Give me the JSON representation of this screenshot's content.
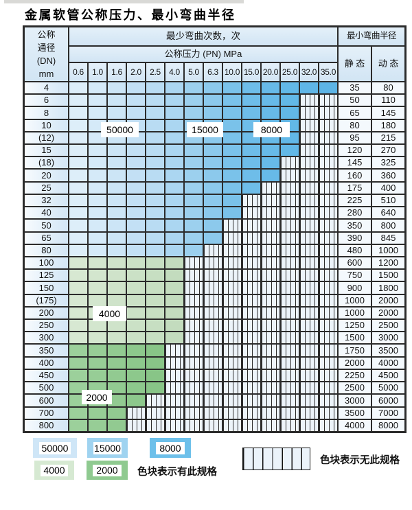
{
  "title": "金属软管公称压力、最小弯曲半径",
  "header": {
    "dn_lines": [
      "公称",
      "通径",
      "(DN)",
      "mm"
    ],
    "cycles": "最少弯曲次数，次",
    "pressure": "公称压力 (PN) MPa",
    "radius": "最小弯曲半径",
    "static": "静 态",
    "dynamic": "动 态"
  },
  "chart_data": {
    "type": "table",
    "title": "金属软管公称压力、最小弯曲半径",
    "row_axis": "公称通径 (DN) mm",
    "col_axis": "公称压力 (PN) MPa",
    "cell_meaning": "最少弯曲次数，次",
    "radius_columns": [
      "静 态",
      "动 态"
    ],
    "pressure_columns": [
      "0.6",
      "1.0",
      "1.6",
      "2.0",
      "2.5",
      "4.0",
      "5.0",
      "6.3",
      "10.0",
      "15.0",
      "20.0",
      "25.0",
      "32.0",
      "35.0"
    ],
    "band_labels": [
      "50000",
      "15000",
      "8000",
      "4000",
      "2000"
    ],
    "rows": [
      {
        "dn": "4",
        "colored_until": "35.0",
        "zone": "blue",
        "static": 35,
        "dynamic": 80
      },
      {
        "dn": "6",
        "colored_until": "25.0",
        "zone": "blue",
        "static": 50,
        "dynamic": 110
      },
      {
        "dn": "8",
        "colored_until": "25.0",
        "zone": "blue",
        "static": 65,
        "dynamic": 145
      },
      {
        "dn": "10",
        "colored_until": "25.0",
        "zone": "blue",
        "static": 80,
        "dynamic": 180
      },
      {
        "dn": "(12)",
        "colored_until": "25.0",
        "zone": "blue",
        "static": 95,
        "dynamic": 215
      },
      {
        "dn": "15",
        "colored_until": "25.0",
        "zone": "blue",
        "static": 120,
        "dynamic": 270
      },
      {
        "dn": "(18)",
        "colored_until": "20.0",
        "zone": "blue",
        "static": 145,
        "dynamic": 325
      },
      {
        "dn": "20",
        "colored_until": "20.0",
        "zone": "blue",
        "static": 160,
        "dynamic": 360
      },
      {
        "dn": "25",
        "colored_until": "15.0",
        "zone": "blue",
        "static": 175,
        "dynamic": 400
      },
      {
        "dn": "32",
        "colored_until": "10.0",
        "zone": "blue",
        "static": 225,
        "dynamic": 510
      },
      {
        "dn": "40",
        "colored_until": "10.0",
        "zone": "blue",
        "static": 280,
        "dynamic": 640
      },
      {
        "dn": "50",
        "colored_until": "6.3",
        "zone": "blue",
        "static": 350,
        "dynamic": 800
      },
      {
        "dn": "65",
        "colored_until": "6.3",
        "zone": "blue",
        "static": 390,
        "dynamic": 845
      },
      {
        "dn": "80",
        "colored_until": "5.0",
        "zone": "blue",
        "static": 480,
        "dynamic": 1000
      },
      {
        "dn": "100",
        "colored_until": "4.0",
        "zone": "green_light",
        "static": 600,
        "dynamic": 1200
      },
      {
        "dn": "125",
        "colored_until": "4.0",
        "zone": "green_light",
        "static": 750,
        "dynamic": 1500
      },
      {
        "dn": "150",
        "colored_until": "4.0",
        "zone": "green_light",
        "static": 900,
        "dynamic": 1800
      },
      {
        "dn": "(175)",
        "colored_until": "4.0",
        "zone": "green_light",
        "static": 1000,
        "dynamic": 2000
      },
      {
        "dn": "200",
        "colored_until": "4.0",
        "zone": "green_light",
        "static": 1000,
        "dynamic": 2000
      },
      {
        "dn": "250",
        "colored_until": "4.0",
        "zone": "green_light",
        "static": 1250,
        "dynamic": 2500
      },
      {
        "dn": "300",
        "colored_until": "4.0",
        "zone": "green_light",
        "static": 1500,
        "dynamic": 3000
      },
      {
        "dn": "350",
        "colored_until": "2.5",
        "zone": "green_dark",
        "static": 1750,
        "dynamic": 3500
      },
      {
        "dn": "400",
        "colored_until": "2.5",
        "zone": "green_dark",
        "static": 2000,
        "dynamic": 4000
      },
      {
        "dn": "450",
        "colored_until": "2.5",
        "zone": "green_dark",
        "static": 2250,
        "dynamic": 4500
      },
      {
        "dn": "500",
        "colored_until": "2.5",
        "zone": "green_dark",
        "static": 2500,
        "dynamic": 5000
      },
      {
        "dn": "600",
        "colored_until": "2.0",
        "zone": "green_dark",
        "static": 3000,
        "dynamic": 6000
      },
      {
        "dn": "700",
        "colored_until": "1.6",
        "zone": "green_dark",
        "static": 3500,
        "dynamic": 7000
      },
      {
        "dn": "800",
        "colored_until": "1.6",
        "zone": "green_dark",
        "static": 4000,
        "dynamic": 8000
      }
    ]
  },
  "legend": {
    "items": [
      {
        "label": "50000",
        "color": "#cfe6f7"
      },
      {
        "label": "15000",
        "color": "#9fd3f0"
      },
      {
        "label": "8000",
        "color": "#6dc0ea"
      },
      {
        "label": "4000",
        "color": "#d6e9d2"
      },
      {
        "label": "2000",
        "color": "#8fca90"
      }
    ],
    "available_note": "色块表示有此规格",
    "unavailable_note": "色块表示无此规格"
  },
  "colors": {
    "border": "#2b2b2b",
    "hatch_bg": "#edf4fa",
    "blue_ramp": [
      "#ddeef9",
      "#d5eaf8",
      "#cce5f6",
      "#c3e0f5",
      "#b9dcf3",
      "#abd6f1",
      "#9cd0ee",
      "#8cc9ec",
      "#7ac2ea",
      "#6ebde9",
      "#67bae8",
      "#62b8e7",
      "#5fb6e7",
      "#5db5e6"
    ],
    "green_light_ramp": [
      "#d7e8d2",
      "#d3e6ce",
      "#cfe3ca",
      "#cbe1c6",
      "#c7dfc2",
      "#c3dcbe"
    ],
    "green_dark_ramp": [
      "#9cd09b",
      "#97cd96",
      "#92ca91",
      "#8dc88c",
      "#88c587"
    ]
  }
}
